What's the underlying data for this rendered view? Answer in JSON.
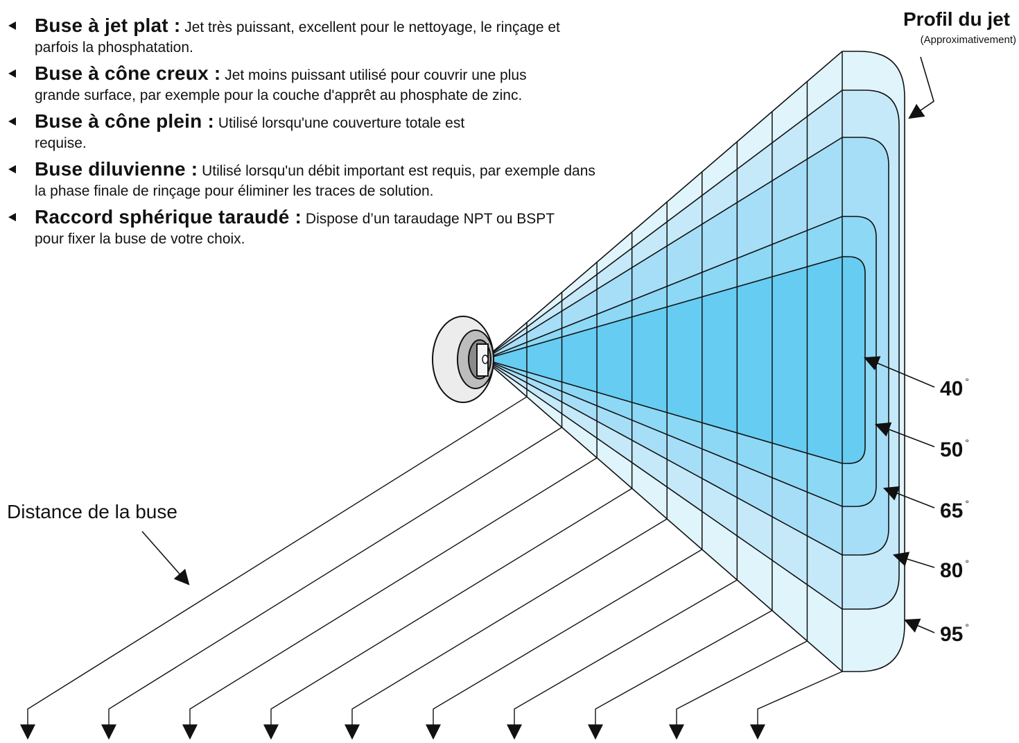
{
  "features": [
    {
      "title": "Buse à jet plat :",
      "text": "Jet très puissant, excellent pour le nettoyage, le rinçage et parfois la phosphatation."
    },
    {
      "title": "Buse à cône creux :",
      "text": "Jet moins puissant utilisé pour couvrir une plus grande surface, par exemple pour la couche d'apprêt au phosphate de zinc."
    },
    {
      "title": "Buse à cône plein :",
      "text": "Utilisé lorsqu'une couverture totale est requise."
    },
    {
      "title": "Buse diluvienne :",
      "text": "Utilisé lorsqu'un débit important est requis, par exemple dans la phase finale de rinçage pour éliminer les traces de solution."
    },
    {
      "title": "Raccord sphérique taraudé :",
      "text": "Dispose d’un taraudage NPT ou BSPT pour fixer la buse de votre choix."
    }
  ],
  "profile": {
    "title": "Profil du jet",
    "subtitle": "(Approximativement)"
  },
  "distance_label": "Distance de la buse",
  "angles": [
    {
      "value": "40",
      "unit": "°",
      "color": "#66ccf2"
    },
    {
      "value": "50",
      "unit": "°",
      "color": "#8dd8f5"
    },
    {
      "value": "65",
      "unit": "°",
      "color": "#a6def7"
    },
    {
      "value": "80",
      "unit": "°",
      "color": "#c5e9f9"
    },
    {
      "value": "95",
      "unit": "°",
      "color": "#e0f4fc"
    }
  ],
  "distance_marker_count": 10
}
